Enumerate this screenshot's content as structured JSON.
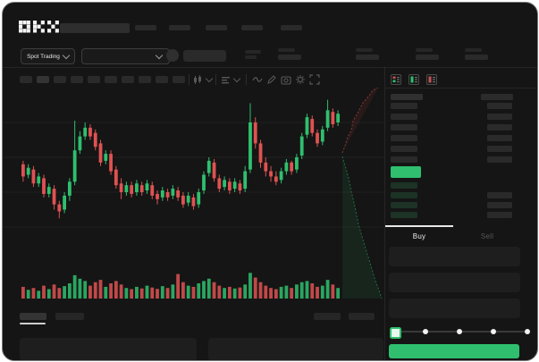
{
  "palette": {
    "green": "#2fbf6e",
    "red": "#df5252",
    "bid_row_tint": "#1c3326",
    "ask_row_grey": "#2a2a2a",
    "accent_text": "#e8e8e8",
    "dim_text": "#5a5a5a",
    "window_bg": "#151515"
  },
  "header": {
    "logo_text": "OKX",
    "search": {
      "placeholder": ""
    },
    "nav_placeholder_count": 5
  },
  "subheader": {
    "market_selector_label": "Spot Trading",
    "pair_dropdown_value": "",
    "stat_group_count": 4
  },
  "chart_toolbar": {
    "timeframe_count": 10,
    "active_timeframe_index": 1,
    "icons": [
      "candle-style-dropdown",
      "indicators-dropdown",
      "line-tool",
      "draw-tool",
      "camera",
      "settings",
      "fullscreen"
    ]
  },
  "chart_data": {
    "type": "candlestick",
    "title": "",
    "xlabel": "",
    "ylabel": "",
    "value_scale": [
      0,
      100
    ],
    "candles_ochl": [
      [
        56,
        49,
        58,
        46
      ],
      [
        50,
        54,
        56,
        48
      ],
      [
        53,
        45,
        55,
        43
      ],
      [
        45,
        49,
        51,
        43
      ],
      [
        48,
        39,
        50,
        37
      ],
      [
        39,
        43,
        45,
        37
      ],
      [
        42,
        33,
        44,
        30
      ],
      [
        33,
        29,
        35,
        25
      ],
      [
        30,
        38,
        40,
        28
      ],
      [
        38,
        46,
        48,
        35
      ],
      [
        46,
        64,
        81,
        44
      ],
      [
        64,
        72,
        75,
        62
      ],
      [
        72,
        77,
        80,
        70
      ],
      [
        77,
        72,
        79,
        70
      ],
      [
        74,
        66,
        76,
        64
      ],
      [
        68,
        57,
        70,
        55
      ],
      [
        58,
        62,
        64,
        56
      ],
      [
        62,
        52,
        64,
        50
      ],
      [
        53,
        44,
        55,
        42
      ],
      [
        45,
        40,
        48,
        36
      ],
      [
        40,
        44,
        46,
        38
      ],
      [
        44,
        39,
        46,
        37
      ],
      [
        40,
        45,
        47,
        38
      ],
      [
        44,
        40,
        46,
        38
      ],
      [
        41,
        45,
        47,
        39
      ],
      [
        44,
        38,
        46,
        36
      ],
      [
        39,
        36,
        41,
        33
      ],
      [
        37,
        41,
        43,
        35
      ],
      [
        40,
        37,
        42,
        35
      ],
      [
        38,
        42,
        44,
        36
      ],
      [
        41,
        37,
        43,
        35
      ],
      [
        38,
        33,
        40,
        31
      ],
      [
        34,
        38,
        40,
        32
      ],
      [
        37,
        32,
        39,
        30
      ],
      [
        33,
        40,
        42,
        31
      ],
      [
        41,
        50,
        52,
        39
      ],
      [
        51,
        58,
        60,
        49
      ],
      [
        57,
        48,
        59,
        46
      ],
      [
        48,
        42,
        50,
        40
      ],
      [
        43,
        47,
        49,
        41
      ],
      [
        46,
        41,
        48,
        39
      ],
      [
        42,
        46,
        48,
        40
      ],
      [
        45,
        41,
        47,
        39
      ],
      [
        42,
        52,
        55,
        40
      ],
      [
        53,
        80,
        91,
        51
      ],
      [
        80,
        68,
        83,
        65
      ],
      [
        68,
        57,
        70,
        54
      ],
      [
        57,
        52,
        60,
        49
      ],
      [
        52,
        49,
        55,
        46
      ],
      [
        49,
        46,
        52,
        44
      ],
      [
        47,
        52,
        54,
        45
      ],
      [
        52,
        57,
        59,
        50
      ],
      [
        57,
        52,
        58,
        50
      ],
      [
        53,
        60,
        62,
        51
      ],
      [
        61,
        72,
        74,
        59
      ],
      [
        73,
        83,
        85,
        71
      ],
      [
        82,
        74,
        84,
        72
      ],
      [
        74,
        68,
        76,
        66
      ],
      [
        69,
        76,
        78,
        67
      ],
      [
        77,
        87,
        93,
        75
      ],
      [
        86,
        79,
        88,
        77
      ],
      [
        80,
        85,
        87,
        78
      ]
    ],
    "volumes": [
      35,
      22,
      30,
      18,
      40,
      25,
      45,
      30,
      38,
      50,
      85,
      70,
      60,
      40,
      55,
      65,
      35,
      50,
      60,
      45,
      30,
      25,
      35,
      28,
      40,
      32,
      26,
      38,
      30,
      45,
      90,
      55,
      40,
      35,
      50,
      60,
      70,
      55,
      40,
      30,
      35,
      28,
      32,
      45,
      95,
      75,
      55,
      40,
      30,
      25,
      35,
      40,
      30,
      45,
      55,
      60,
      50,
      35,
      40,
      65,
      45,
      30
    ],
    "gridlines_y_values": [
      20,
      40,
      60,
      80
    ]
  },
  "depth": {
    "ask_curve": [
      [
        380,
        168
      ],
      [
        383,
        160
      ],
      [
        386,
        150
      ],
      [
        390,
        143
      ],
      [
        392,
        132
      ],
      [
        398,
        122
      ],
      [
        403,
        112
      ],
      [
        410,
        104
      ],
      [
        414,
        98
      ],
      [
        420,
        95
      ]
    ],
    "bid_curve": [
      [
        380,
        172
      ],
      [
        383,
        182
      ],
      [
        387,
        196
      ],
      [
        390,
        211
      ],
      [
        394,
        228
      ],
      [
        398,
        248
      ],
      [
        404,
        268
      ],
      [
        410,
        288
      ],
      [
        416,
        308
      ],
      [
        421,
        322
      ],
      [
        424,
        331
      ]
    ]
  },
  "orderbook": {
    "view_modes": [
      "combined-book",
      "bids-only-book",
      "asks-only-book"
    ],
    "ask_rows": 6,
    "bid_rows": 4,
    "mid_price_highlight": true
  },
  "trade_panel": {
    "tabs": [
      {
        "label": "Buy",
        "active": true
      },
      {
        "label": "Sell",
        "active": false
      }
    ],
    "form_field_count": 3,
    "slider": {
      "steps": 5,
      "value_index": 0
    },
    "submit_button_label": ""
  },
  "bottom_panel": {
    "left_tab_count": 2,
    "active_left_tab_index": 0,
    "right_block_count": 2,
    "content_panel_count": 2
  }
}
